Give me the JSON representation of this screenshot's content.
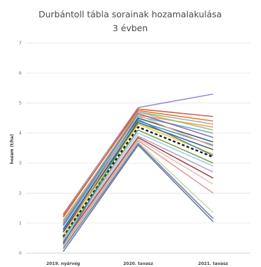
{
  "chart_data": {
    "type": "line",
    "title_line1": "Durbántoll tábla sorainak hozamalakulása",
    "title_line2": "3 évben",
    "ylabel": "hozam (t/ha)",
    "xlabel": "",
    "categories": [
      "2019. nyárvég",
      "2020. tavasz",
      "2021. tavasz"
    ],
    "ylim": [
      0,
      7
    ],
    "yticks": [
      0,
      1,
      2,
      3,
      4,
      5,
      6,
      7
    ],
    "grid": true,
    "legend": "none",
    "series": [
      {
        "values": [
          1.3,
          4.85,
          5.3
        ],
        "color": "#8a7fc9"
      },
      {
        "values": [
          1.2,
          4.8,
          4.55
        ],
        "color": "#c0504d"
      },
      {
        "values": [
          1.25,
          4.75,
          4.4
        ],
        "color": "#e46c0a"
      },
      {
        "values": [
          1.1,
          4.6,
          4.2
        ],
        "color": "#f79646"
      },
      {
        "values": [
          1.0,
          4.7,
          4.1
        ],
        "color": "#9bbb59"
      },
      {
        "values": [
          0.9,
          4.55,
          4.0
        ],
        "color": "#4bacc6"
      },
      {
        "values": [
          0.95,
          4.65,
          3.85
        ],
        "color": "#8064a2"
      },
      {
        "values": [
          0.8,
          4.5,
          3.7
        ],
        "color": "#1f497d"
      },
      {
        "values": [
          0.75,
          4.4,
          3.6
        ],
        "color": "#4f81bd"
      },
      {
        "values": [
          0.7,
          4.35,
          3.45
        ],
        "color": "#2c4d75"
      },
      {
        "values": [
          0.6,
          4.3,
          3.3
        ],
        "color": "#f2c314"
      },
      {
        "values": [
          0.55,
          4.2,
          3.2
        ],
        "color": "#000000",
        "dashed": true
      },
      {
        "values": [
          0.5,
          4.1,
          3.0
        ],
        "color": "#77933c"
      },
      {
        "values": [
          0.45,
          4.0,
          2.9
        ],
        "color": "#93cddd"
      },
      {
        "values": [
          0.4,
          3.9,
          2.7
        ],
        "color": "#b3a2c7"
      },
      {
        "values": [
          0.35,
          3.85,
          2.5
        ],
        "color": "#953735"
      },
      {
        "values": [
          0.3,
          3.8,
          2.3
        ],
        "color": "#e6b9b8"
      },
      {
        "values": [
          0.25,
          3.75,
          2.0
        ],
        "color": "#d99694"
      },
      {
        "values": [
          0.2,
          3.7,
          1.35
        ],
        "color": "#c3d69b"
      },
      {
        "values": [
          0.15,
          3.65,
          1.15
        ],
        "color": "#6f6f9f"
      },
      {
        "values": [
          0.05,
          3.6,
          1.05
        ],
        "color": "#5b6aa8"
      },
      {
        "values": [
          0.3,
          4.45,
          3.25
        ],
        "color": "#31859c"
      },
      {
        "values": [
          0.6,
          4.6,
          3.55
        ],
        "color": "#f4b183"
      },
      {
        "values": [
          1.05,
          4.7,
          4.3
        ],
        "color": "#a5a5a5"
      }
    ]
  }
}
